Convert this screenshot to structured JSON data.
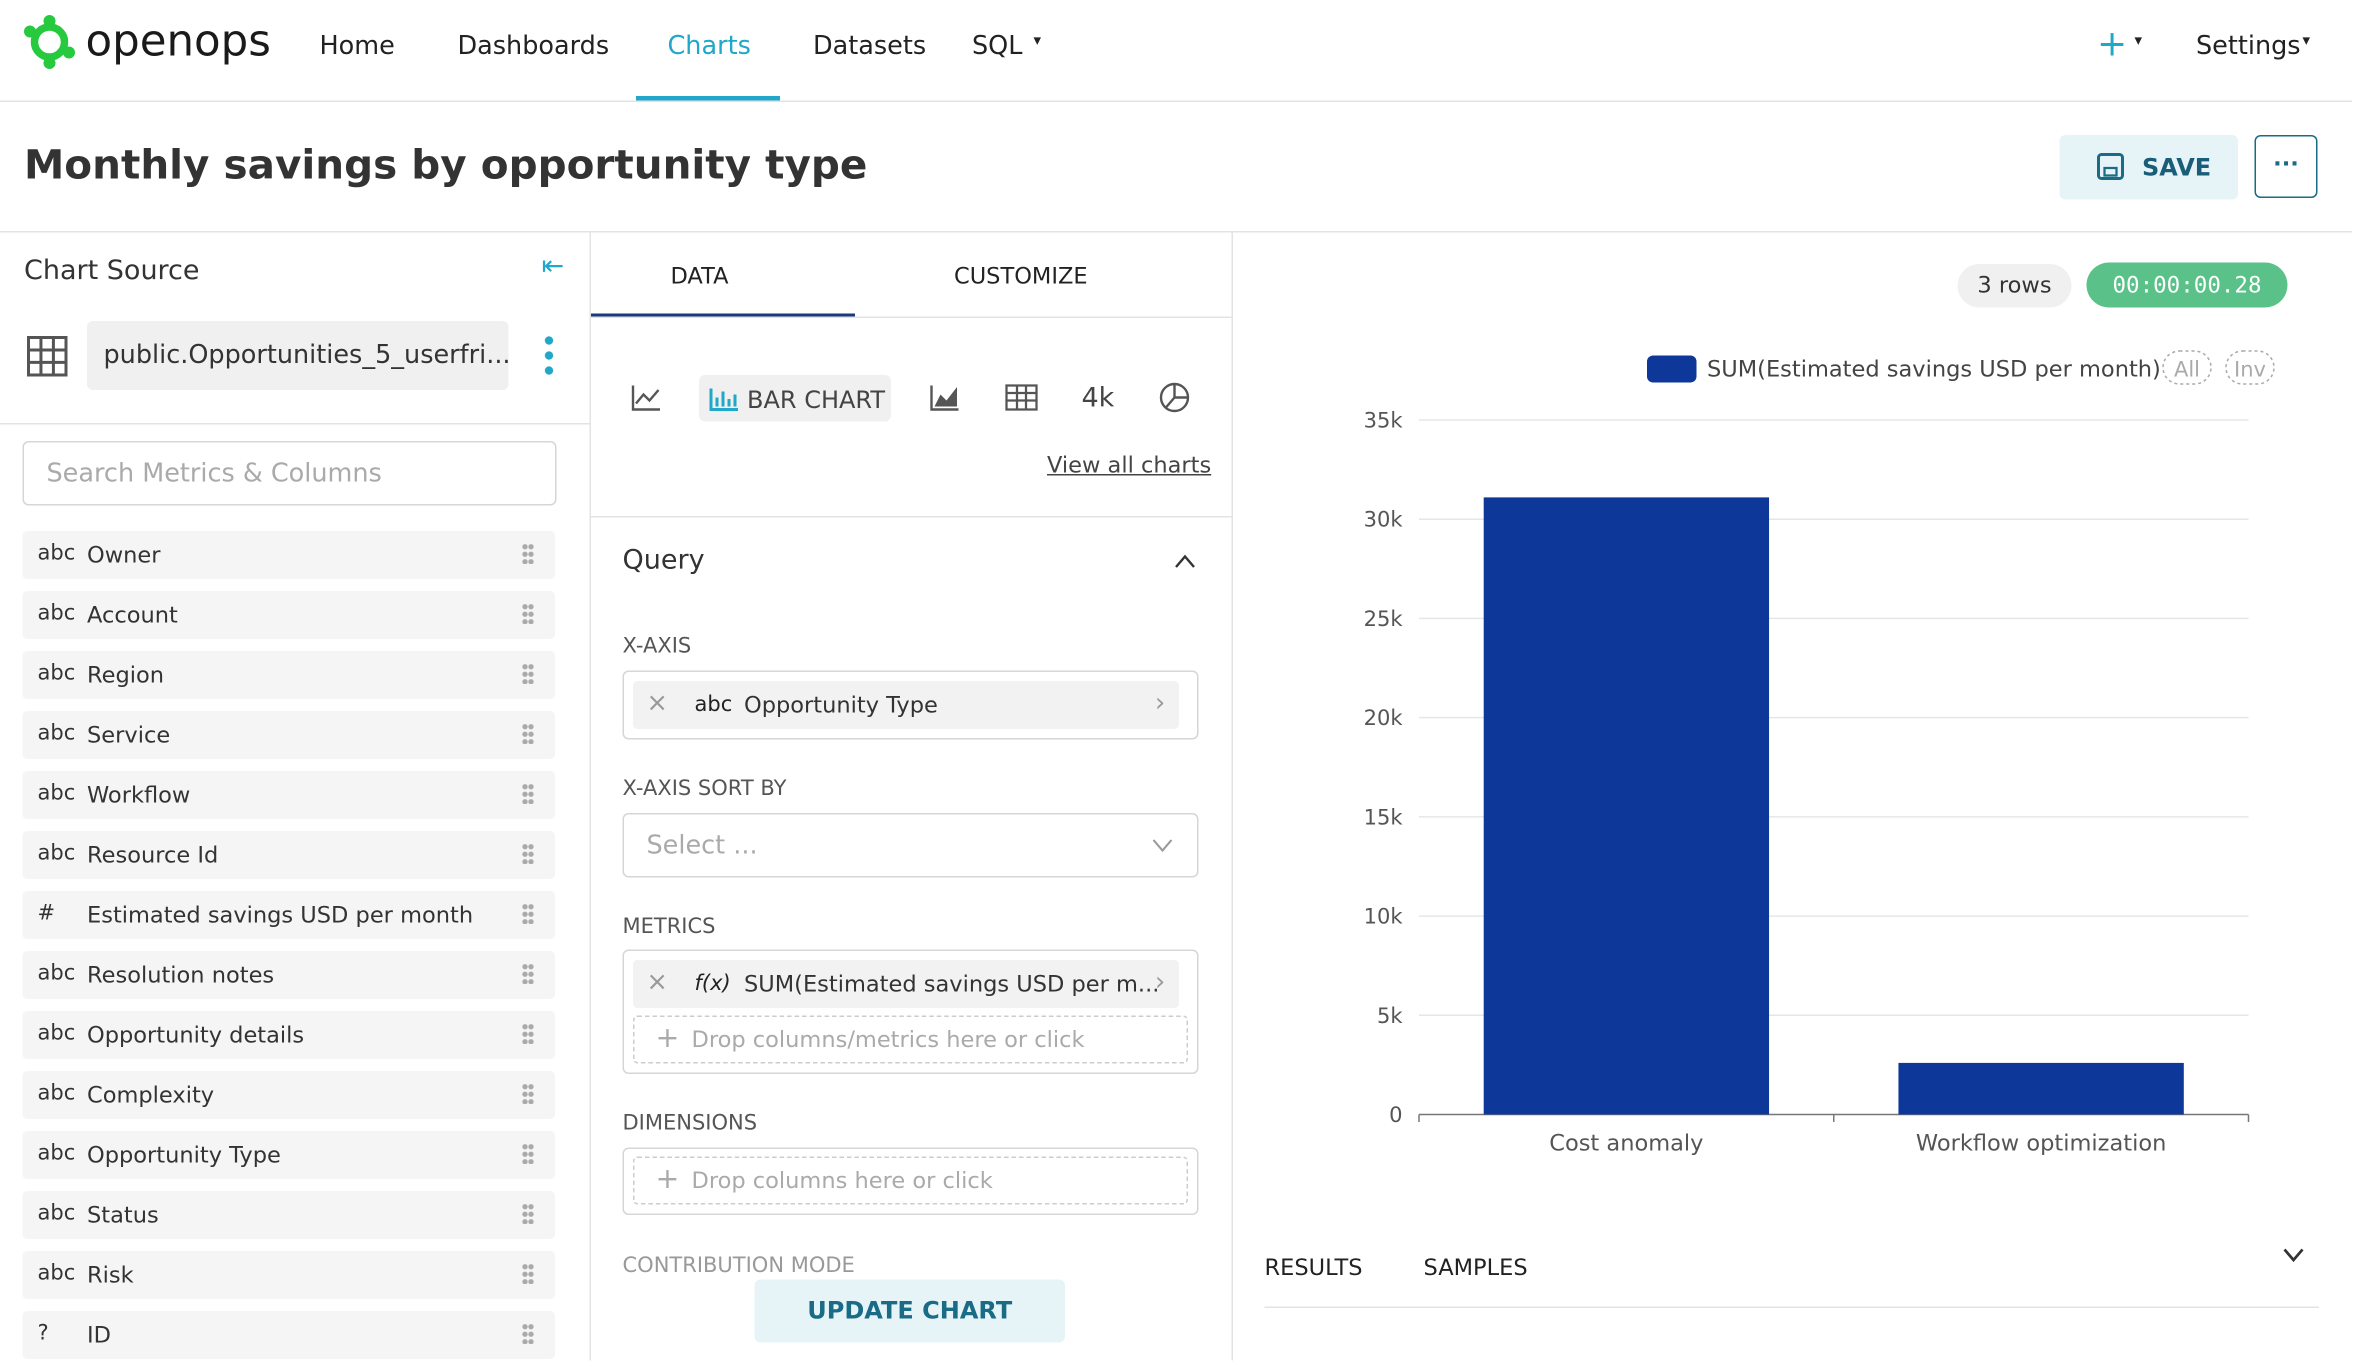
{
  "nav": {
    "brand": "openops",
    "items": [
      "Home",
      "Dashboards",
      "Charts",
      "Datasets",
      "SQL"
    ],
    "settings": "Settings"
  },
  "header": {
    "title": "Monthly savings by opportunity type",
    "save": "SAVE"
  },
  "source": {
    "title": "Chart Source",
    "dataset": "public.Opportunities_5_userfri...",
    "search": "Search Metrics & Columns",
    "columns": [
      {
        "type": "abc",
        "name": "Owner"
      },
      {
        "type": "abc",
        "name": "Account"
      },
      {
        "type": "abc",
        "name": "Region"
      },
      {
        "type": "abc",
        "name": "Service"
      },
      {
        "type": "abc",
        "name": "Workflow"
      },
      {
        "type": "abc",
        "name": "Resource Id"
      },
      {
        "type": "#",
        "name": "Estimated savings USD per month"
      },
      {
        "type": "abc",
        "name": "Resolution notes"
      },
      {
        "type": "abc",
        "name": "Opportunity details"
      },
      {
        "type": "abc",
        "name": "Complexity"
      },
      {
        "type": "abc",
        "name": "Opportunity Type"
      },
      {
        "type": "abc",
        "name": "Status"
      },
      {
        "type": "abc",
        "name": "Risk"
      },
      {
        "type": "?",
        "name": "ID"
      }
    ]
  },
  "controls": {
    "tabs": [
      "DATA",
      "CUSTOMIZE"
    ],
    "bar_chart": "BAR CHART",
    "big_number": "4k",
    "view_all": "View all charts",
    "query": "Query",
    "x_axis_label": "X-AXIS",
    "x_axis_type": "abc",
    "x_axis_value": "Opportunity Type",
    "sort_label": "X-AXIS SORT BY",
    "sort_placeholder": "Select ...",
    "metrics_label": "METRICS",
    "metric_fx": "f(x)",
    "metric": "SUM(Estimated savings USD per m...",
    "metrics_drop": "Drop columns/metrics here or click",
    "dimensions_label": "DIMENSIONS",
    "dimensions_drop": "Drop columns here or click",
    "contribution": "CONTRIBUTION MODE",
    "update": "UPDATE CHART"
  },
  "results": {
    "rows": "3 rows",
    "time": "00:00:00.28",
    "tabs": [
      "RESULTS",
      "SAMPLES"
    ],
    "legend_controls": [
      "All",
      "Inv"
    ]
  },
  "chart_data": {
    "type": "bar",
    "categories": [
      "Cost anomaly",
      "Workflow optimization"
    ],
    "series": [
      {
        "name": "SUM(Estimated savings USD per month)",
        "color": "#0d3798",
        "values": [
          31100,
          2600
        ]
      }
    ],
    "ylim": [
      0,
      35000
    ],
    "yticks": [
      0,
      {
        "value": 5000,
        "label": "5k"
      },
      {
        "value": 10000,
        "label": "10k"
      },
      {
        "value": 15000,
        "label": "15k"
      },
      {
        "value": 20000,
        "label": "20k"
      },
      {
        "value": 25000,
        "label": "25k"
      },
      {
        "value": 30000,
        "label": "30k"
      },
      {
        "value": 35000,
        "label": "35k"
      }
    ],
    "grid": true
  }
}
